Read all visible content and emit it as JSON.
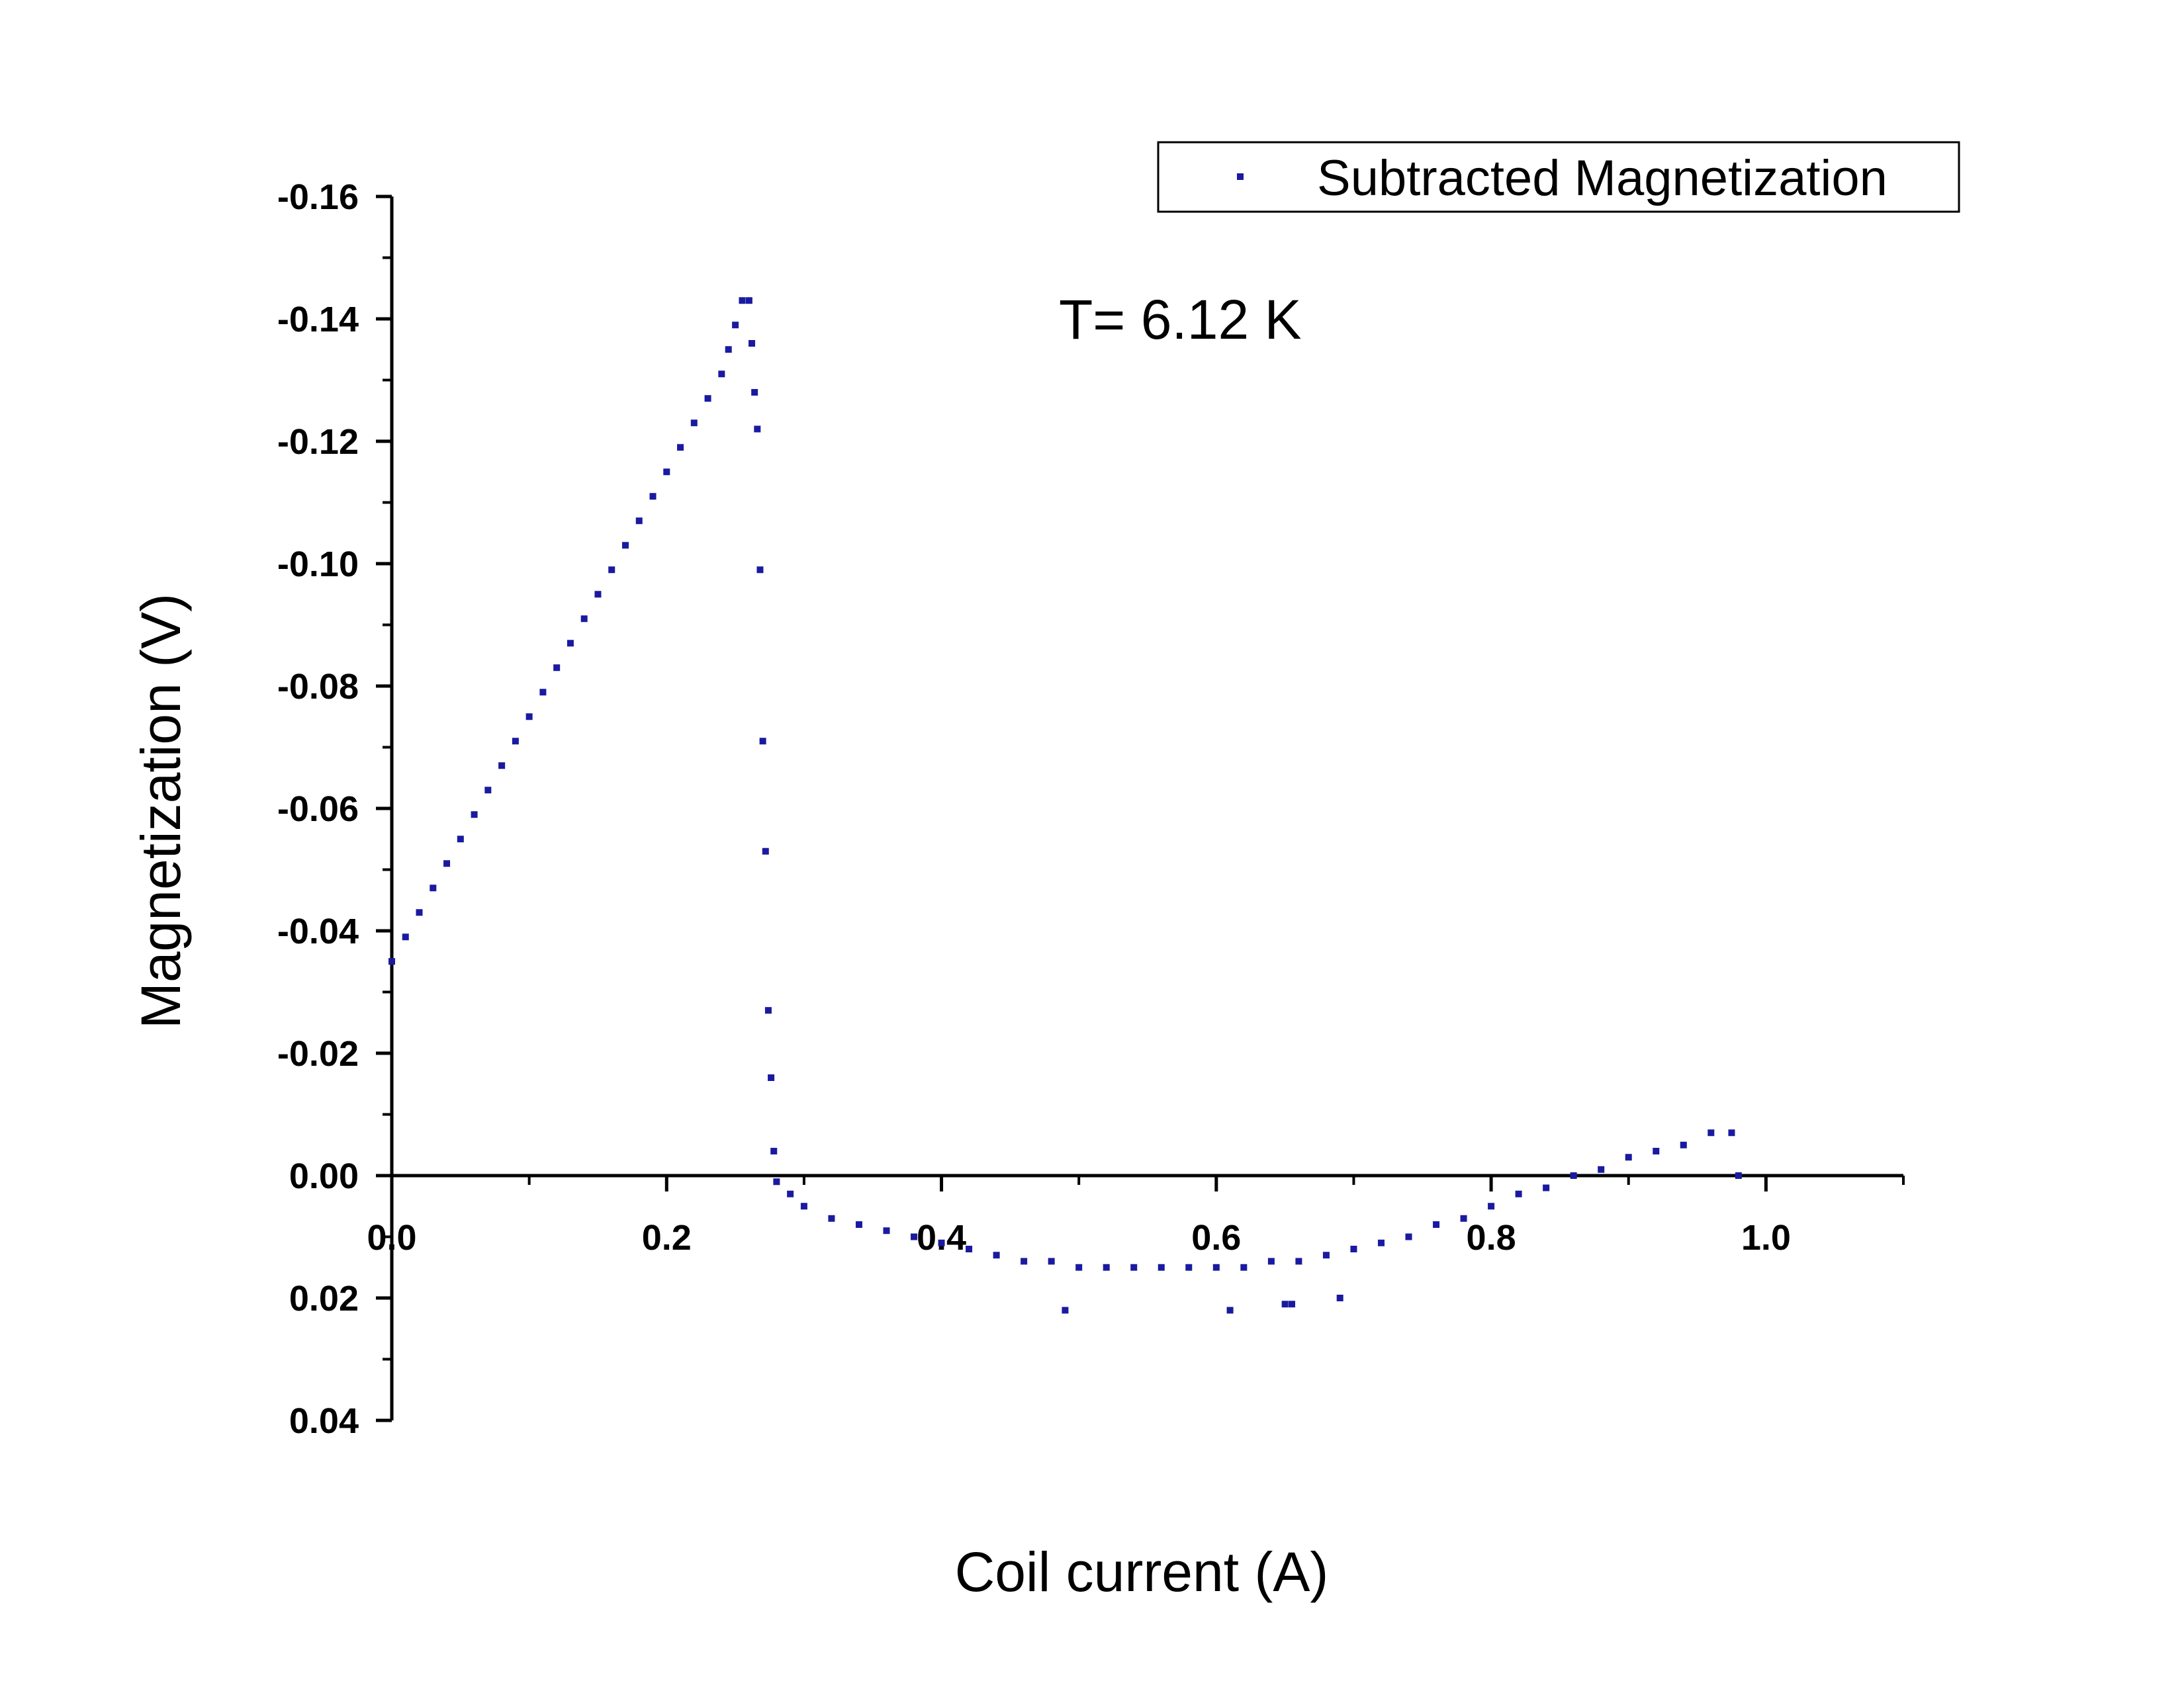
{
  "chart_data": {
    "type": "scatter",
    "title": "",
    "xlabel": "Coil current (A)",
    "ylabel": "Magnetization (V)",
    "xlim": [
      0.0,
      1.1
    ],
    "ylim": [
      -0.16,
      0.04
    ],
    "y_axis_inverted": true,
    "x_ticks": [
      0.0,
      0.2,
      0.4,
      0.6,
      0.8,
      1.0
    ],
    "x_tick_labels": [
      "0.0",
      "0.2",
      "0.4",
      "0.6",
      "0.8",
      "1.0"
    ],
    "y_ticks": [
      -0.16,
      -0.14,
      -0.12,
      -0.1,
      -0.08,
      -0.06,
      -0.04,
      -0.02,
      0.0,
      0.02,
      0.04
    ],
    "y_tick_labels": [
      "-0.16",
      "-0.14",
      "-0.12",
      "-0.10",
      "-0.08",
      "-0.06",
      "-0.04",
      "-0.02",
      "0.00",
      "0.02",
      "0.04"
    ],
    "grid": false,
    "legend_position": "top-right",
    "annotation": "T= 6.12 K",
    "series": [
      {
        "name": "Subtracted Magnetization",
        "color": "#1a1aa0",
        "marker": "square",
        "x": [
          0.0,
          0.01,
          0.02,
          0.03,
          0.04,
          0.05,
          0.06,
          0.07,
          0.08,
          0.09,
          0.1,
          0.11,
          0.12,
          0.13,
          0.14,
          0.15,
          0.16,
          0.17,
          0.18,
          0.19,
          0.2,
          0.21,
          0.22,
          0.23,
          0.24,
          0.245,
          0.25,
          0.255,
          0.26,
          0.262,
          0.264,
          0.266,
          0.268,
          0.27,
          0.272,
          0.274,
          0.276,
          0.278,
          0.28,
          0.29,
          0.3,
          0.32,
          0.34,
          0.36,
          0.38,
          0.4,
          0.42,
          0.44,
          0.46,
          0.48,
          0.49,
          0.5,
          0.52,
          0.54,
          0.56,
          0.58,
          0.6,
          0.61,
          0.62,
          0.64,
          0.65,
          0.655,
          0.66,
          0.68,
          0.69,
          0.7,
          0.72,
          0.74,
          0.76,
          0.78,
          0.8,
          0.82,
          0.84,
          0.86,
          0.88,
          0.9,
          0.92,
          0.94,
          0.96,
          0.975,
          0.98
        ],
        "y": [
          -0.035,
          -0.039,
          -0.043,
          -0.047,
          -0.051,
          -0.055,
          -0.059,
          -0.063,
          -0.067,
          -0.071,
          -0.075,
          -0.079,
          -0.083,
          -0.087,
          -0.091,
          -0.095,
          -0.099,
          -0.103,
          -0.107,
          -0.111,
          -0.115,
          -0.119,
          -0.123,
          -0.127,
          -0.131,
          -0.135,
          -0.139,
          -0.143,
          -0.143,
          -0.136,
          -0.128,
          -0.122,
          -0.099,
          -0.071,
          -0.053,
          -0.027,
          -0.016,
          -0.004,
          0.001,
          0.003,
          0.005,
          0.007,
          0.008,
          0.009,
          0.01,
          0.011,
          0.012,
          0.013,
          0.014,
          0.014,
          0.022,
          0.015,
          0.015,
          0.015,
          0.015,
          0.015,
          0.015,
          0.022,
          0.015,
          0.014,
          0.021,
          0.021,
          0.014,
          0.013,
          0.02,
          0.012,
          0.011,
          0.01,
          0.008,
          0.007,
          0.005,
          0.003,
          0.002,
          0.0,
          -0.001,
          -0.003,
          -0.004,
          -0.005,
          -0.007,
          -0.007,
          0.0
        ]
      }
    ]
  }
}
